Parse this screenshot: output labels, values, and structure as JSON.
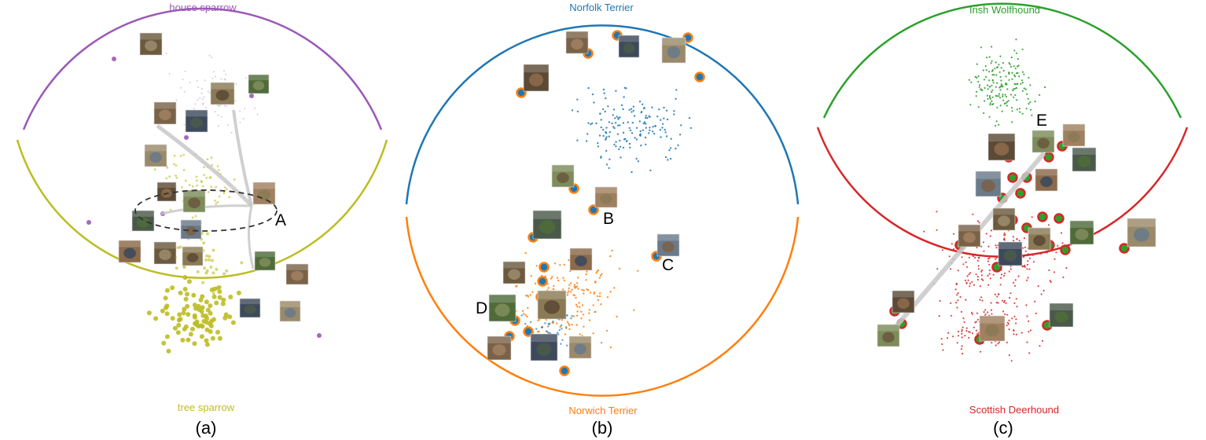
{
  "colors": {
    "purple": "#9b59b6",
    "olive": "#bcbd22",
    "blue": "#1f77b4",
    "orange": "#ff7f0e",
    "green": "#2ca02c",
    "red": "#d62728",
    "trail": "#c8c8c8"
  },
  "panels": [
    {
      "caption": "(a)",
      "top_label": "house sparrow",
      "bottom_label": "tree sparrow",
      "top_color": "purple",
      "bottom_color": "olive",
      "markers": [
        "A"
      ]
    },
    {
      "caption": "(b)",
      "top_label": "Norfolk Terrier",
      "bottom_label": "Norwich Terrier",
      "top_color": "blue",
      "bottom_color": "orange",
      "markers": [
        "B",
        "C",
        "D"
      ]
    },
    {
      "caption": "(c)",
      "top_label": "Irish Wolfhound",
      "bottom_label": "Scottish Deerhound",
      "top_color": "green",
      "bottom_color": "red",
      "markers": [
        "E"
      ]
    }
  ]
}
